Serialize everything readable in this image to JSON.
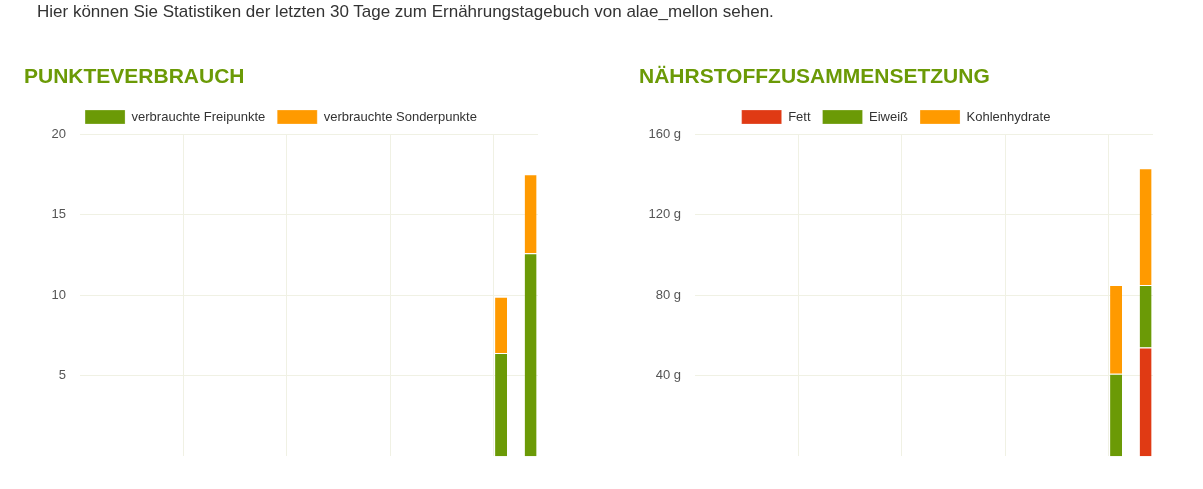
{
  "chart_data": [
    {
      "type": "bar",
      "title": "PUNKTEVERBRAUCH",
      "annotations": [
        "Hier können Sie Statistiken der letzten 30 Tage zum Ernährungstagebuch von alae_mellon sehen."
      ],
      "stacked": true,
      "legend": "top",
      "grid": true,
      "categories": [
        null,
        null,
        null,
        null,
        null,
        null,
        null,
        null,
        null,
        null,
        null,
        null,
        null,
        null,
        null,
        null,
        null,
        null,
        null,
        null,
        null,
        null,
        null,
        null,
        null,
        null,
        null,
        null,
        null,
        null,
        null
      ],
      "series": [
        {
          "name": "verbrauchte Freipunkte",
          "color": "#6b9a06",
          "values": [
            null,
            null,
            null,
            null,
            null,
            null,
            null,
            null,
            null,
            null,
            null,
            null,
            null,
            null,
            null,
            null,
            null,
            null,
            null,
            null,
            null,
            null,
            null,
            null,
            null,
            null,
            null,
            null,
            6.4,
            null,
            12.6
          ]
        },
        {
          "name": "verbrauchte Sonderpunkte",
          "color": "#ff9a00",
          "values": [
            null,
            null,
            null,
            null,
            null,
            null,
            null,
            null,
            null,
            null,
            null,
            null,
            null,
            null,
            null,
            null,
            null,
            null,
            null,
            null,
            null,
            null,
            null,
            null,
            null,
            null,
            null,
            null,
            3.5,
            null,
            4.9
          ]
        }
      ],
      "ylim": [
        0,
        20
      ],
      "yticks": [
        5,
        10,
        15,
        20
      ]
    },
    {
      "type": "bar",
      "title": "NÄHRSTOFFZUSAMMENSETZUNG",
      "stacked": true,
      "legend": "top",
      "grid": true,
      "categories": [
        null,
        null,
        null,
        null,
        null,
        null,
        null,
        null,
        null,
        null,
        null,
        null,
        null,
        null,
        null,
        null,
        null,
        null,
        null,
        null,
        null,
        null,
        null,
        null,
        null,
        null,
        null,
        null,
        null,
        null,
        null
      ],
      "series": [
        {
          "name": "Fett",
          "color": "#e03a14",
          "values": [
            null,
            null,
            null,
            null,
            null,
            null,
            null,
            null,
            null,
            null,
            null,
            null,
            null,
            null,
            null,
            null,
            null,
            null,
            null,
            null,
            null,
            null,
            null,
            null,
            null,
            null,
            null,
            null,
            null,
            null,
            54
          ]
        },
        {
          "name": "Eiweiß",
          "color": "#6b9a06",
          "values": [
            null,
            null,
            null,
            null,
            null,
            null,
            null,
            null,
            null,
            null,
            null,
            null,
            null,
            null,
            null,
            null,
            null,
            null,
            null,
            null,
            null,
            null,
            null,
            null,
            null,
            null,
            null,
            null,
            41,
            null,
            31
          ]
        },
        {
          "name": "Kohlenhydrate",
          "color": "#ff9a00",
          "values": [
            null,
            null,
            null,
            null,
            null,
            null,
            null,
            null,
            null,
            null,
            null,
            null,
            null,
            null,
            null,
            null,
            null,
            null,
            null,
            null,
            null,
            null,
            null,
            null,
            null,
            null,
            null,
            null,
            44,
            null,
            58
          ]
        }
      ],
      "ylim": [
        0,
        160
      ],
      "yticks": [
        {
          "value": 40,
          "label": "40 g"
        },
        {
          "value": 80,
          "label": "80 g"
        },
        {
          "value": 120,
          "label": "120 g"
        },
        {
          "value": 160,
          "label": "160 g"
        }
      ]
    }
  ]
}
